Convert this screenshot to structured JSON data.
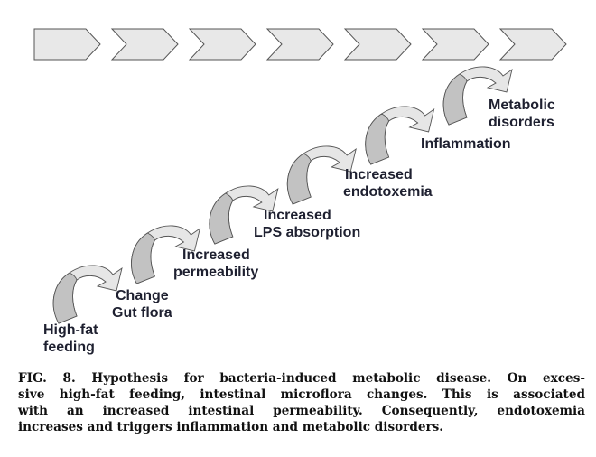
{
  "diagram": {
    "chevron_count": 7,
    "steps": [
      {
        "lines": [
          "High-fat",
          "feeding"
        ]
      },
      {
        "lines": [
          "Change",
          "Gut flora"
        ]
      },
      {
        "lines": [
          "Increased",
          "permeability"
        ]
      },
      {
        "lines": [
          "Increased",
          "LPS absorption"
        ]
      },
      {
        "lines": [
          "Increased",
          "endotoxemia"
        ]
      },
      {
        "lines": [
          "Inflammation"
        ]
      },
      {
        "lines": [
          "Metabolic",
          "disorders"
        ]
      }
    ],
    "colors": {
      "chevron_fill": "#e8e8e8",
      "arrow_light": "#e6e6e6",
      "arrow_dark": "#c2c2c2",
      "stroke": "#555555"
    }
  },
  "caption": {
    "lines": [
      "FIG. 8. Hypothesis for bacteria-induced metabolic disease. On exces-",
      "sive high-fat feeding, intestinal microflora changes. This is associated",
      "with an increased intestinal permeability. Consequently, endotoxemia",
      "increases and triggers inflammation and metabolic disorders."
    ]
  }
}
